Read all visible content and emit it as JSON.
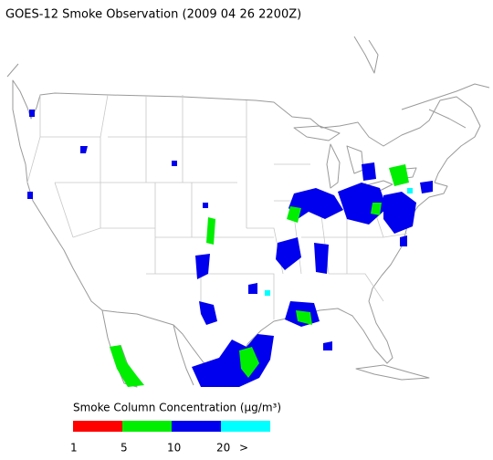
{
  "title": "GOES-12 Smoke Observation (2009 04 26  2200Z)",
  "legend": {
    "title": "Smoke Column Concentration (μg/m³)",
    "colors": [
      "#ff0000",
      "#00ee00",
      "#0000ee",
      "#00ffff"
    ],
    "labels": [
      "1",
      "5",
      "10",
      "20",
      ">"
    ]
  }
}
